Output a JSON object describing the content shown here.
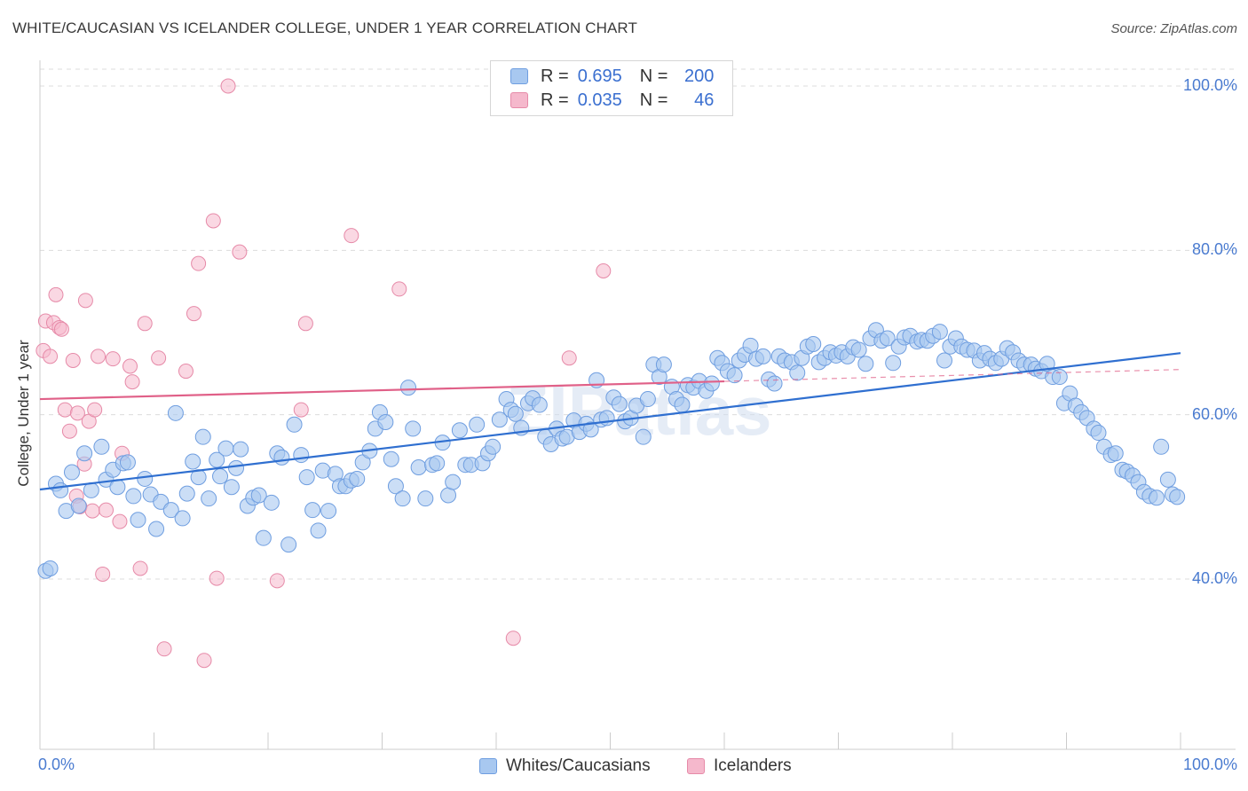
{
  "header": {
    "title": "WHITE/CAUCASIAN VS ICELANDER COLLEGE, UNDER 1 YEAR CORRELATION CHART",
    "source": "Source: ZipAtlas.com"
  },
  "colors": {
    "blue_fill": "#a8c8f0",
    "blue_stroke": "#6f9ee0",
    "blue_line": "#2f6fd0",
    "pink_fill": "#f5b8cc",
    "pink_stroke": "#e68aa8",
    "pink_line": "#e06088",
    "tick_text": "#4a7bd0",
    "grid": "#dcdcdc"
  },
  "legend": {
    "rows": [
      {
        "r_label": "R =",
        "r_value": "0.695",
        "n_label": "N =",
        "n_value": "200",
        "swatch": "blue"
      },
      {
        "r_label": "R =",
        "r_value": "0.035",
        "n_label": "N =",
        "n_value": "46",
        "swatch": "pink"
      }
    ]
  },
  "bottom_legend": {
    "items": [
      {
        "label": "Whites/Caucasians",
        "swatch": "blue"
      },
      {
        "label": "Icelanders",
        "swatch": "pink"
      }
    ]
  },
  "chart_data": {
    "type": "scatter",
    "title": "WHITE/CAUCASIAN VS ICELANDER COLLEGE, UNDER 1 YEAR CORRELATION CHART",
    "xlabel": "",
    "ylabel": "College, Under 1 year",
    "xlim": [
      0,
      100
    ],
    "ylim": [
      20,
      102
    ],
    "x_tick_labels": [
      "0.0%",
      "100.0%"
    ],
    "y_ticks": [
      40,
      60,
      80,
      100
    ],
    "y_tick_labels": [
      "40.0%",
      "60.0%",
      "80.0%",
      "100.0%"
    ],
    "grid": true,
    "watermark": "ZIPatlas",
    "series": [
      {
        "name": "Whites/Caucasians",
        "color": "#a8c8f0",
        "trend": {
          "x": [
            0,
            100
          ],
          "y": [
            50.9,
            67.5
          ]
        },
        "points": [
          [
            0.5,
            41.0
          ],
          [
            0.9,
            41.3
          ],
          [
            1.4,
            51.6
          ],
          [
            1.8,
            50.8
          ],
          [
            2.3,
            48.3
          ],
          [
            2.8,
            53.0
          ],
          [
            3.4,
            48.9
          ],
          [
            3.9,
            55.3
          ],
          [
            4.5,
            50.8
          ],
          [
            5.4,
            56.1
          ],
          [
            5.8,
            52.1
          ],
          [
            6.4,
            53.3
          ],
          [
            6.8,
            51.2
          ],
          [
            7.3,
            54.1
          ],
          [
            7.7,
            54.2
          ],
          [
            8.2,
            50.1
          ],
          [
            8.6,
            47.2
          ],
          [
            9.2,
            52.2
          ],
          [
            9.7,
            50.3
          ],
          [
            10.2,
            46.1
          ],
          [
            10.6,
            49.4
          ],
          [
            11.5,
            48.4
          ],
          [
            11.9,
            60.2
          ],
          [
            12.5,
            47.4
          ],
          [
            12.9,
            50.4
          ],
          [
            13.4,
            54.3
          ],
          [
            13.9,
            52.4
          ],
          [
            14.3,
            57.3
          ],
          [
            14.8,
            49.8
          ],
          [
            15.5,
            54.5
          ],
          [
            15.8,
            52.5
          ],
          [
            16.3,
            55.9
          ],
          [
            16.8,
            51.2
          ],
          [
            17.2,
            53.5
          ],
          [
            17.6,
            55.8
          ],
          [
            18.2,
            48.9
          ],
          [
            18.7,
            49.9
          ],
          [
            19.2,
            50.2
          ],
          [
            19.6,
            45.0
          ],
          [
            20.3,
            49.3
          ],
          [
            20.8,
            55.3
          ],
          [
            21.2,
            54.8
          ],
          [
            21.8,
            44.2
          ],
          [
            22.3,
            58.8
          ],
          [
            22.9,
            55.1
          ],
          [
            23.4,
            52.4
          ],
          [
            23.9,
            48.4
          ],
          [
            24.4,
            45.9
          ],
          [
            24.8,
            53.2
          ],
          [
            25.3,
            48.3
          ],
          [
            25.9,
            52.8
          ],
          [
            26.3,
            51.3
          ],
          [
            26.8,
            51.3
          ],
          [
            27.3,
            52.0
          ],
          [
            27.8,
            52.2
          ],
          [
            28.3,
            54.2
          ],
          [
            28.9,
            55.6
          ],
          [
            29.4,
            58.3
          ],
          [
            29.8,
            60.3
          ],
          [
            30.3,
            59.1
          ],
          [
            30.8,
            54.6
          ],
          [
            31.2,
            51.3
          ],
          [
            31.8,
            49.8
          ],
          [
            32.3,
            63.3
          ],
          [
            32.7,
            58.3
          ],
          [
            33.2,
            53.6
          ],
          [
            33.8,
            49.8
          ],
          [
            34.4,
            53.9
          ],
          [
            34.8,
            54.1
          ],
          [
            35.3,
            56.6
          ],
          [
            35.8,
            50.2
          ],
          [
            36.2,
            51.8
          ],
          [
            36.8,
            58.1
          ],
          [
            37.3,
            53.9
          ],
          [
            37.8,
            53.9
          ],
          [
            38.3,
            58.8
          ],
          [
            38.8,
            54.1
          ],
          [
            39.3,
            55.3
          ],
          [
            39.7,
            56.1
          ],
          [
            40.3,
            59.4
          ],
          [
            40.9,
            61.9
          ],
          [
            41.3,
            60.6
          ],
          [
            41.7,
            60.1
          ],
          [
            42.2,
            58.4
          ],
          [
            42.8,
            61.4
          ],
          [
            43.2,
            62.0
          ],
          [
            43.8,
            61.2
          ],
          [
            44.3,
            57.3
          ],
          [
            44.8,
            56.4
          ],
          [
            45.3,
            58.3
          ],
          [
            45.8,
            57.1
          ],
          [
            46.2,
            57.3
          ],
          [
            46.8,
            59.3
          ],
          [
            47.3,
            57.9
          ],
          [
            47.9,
            58.9
          ],
          [
            48.3,
            58.2
          ],
          [
            48.8,
            64.2
          ],
          [
            49.2,
            59.4
          ],
          [
            49.7,
            59.6
          ],
          [
            50.3,
            62.1
          ],
          [
            50.8,
            61.3
          ],
          [
            51.3,
            59.2
          ],
          [
            51.8,
            59.6
          ],
          [
            52.3,
            61.1
          ],
          [
            52.9,
            57.3
          ],
          [
            53.3,
            61.9
          ],
          [
            53.8,
            66.1
          ],
          [
            54.3,
            64.6
          ],
          [
            54.7,
            66.1
          ],
          [
            55.4,
            63.4
          ],
          [
            55.8,
            61.9
          ],
          [
            56.3,
            61.2
          ],
          [
            56.8,
            63.6
          ],
          [
            57.3,
            63.3
          ],
          [
            57.8,
            64.1
          ],
          [
            58.4,
            62.9
          ],
          [
            58.9,
            63.8
          ],
          [
            59.4,
            66.9
          ],
          [
            59.8,
            66.3
          ],
          [
            60.3,
            65.3
          ],
          [
            60.9,
            64.8
          ],
          [
            61.3,
            66.6
          ],
          [
            61.8,
            67.3
          ],
          [
            62.3,
            68.4
          ],
          [
            62.8,
            66.8
          ],
          [
            63.4,
            67.1
          ],
          [
            63.9,
            64.3
          ],
          [
            64.4,
            63.8
          ],
          [
            64.8,
            67.1
          ],
          [
            65.3,
            66.6
          ],
          [
            65.9,
            66.4
          ],
          [
            66.4,
            65.1
          ],
          [
            66.8,
            66.9
          ],
          [
            67.3,
            68.3
          ],
          [
            67.8,
            68.6
          ],
          [
            68.3,
            66.4
          ],
          [
            68.8,
            66.9
          ],
          [
            69.3,
            67.6
          ],
          [
            69.8,
            67.2
          ],
          [
            70.3,
            67.6
          ],
          [
            70.8,
            67.1
          ],
          [
            71.3,
            68.2
          ],
          [
            71.8,
            67.9
          ],
          [
            72.4,
            66.2
          ],
          [
            72.8,
            69.3
          ],
          [
            73.3,
            70.3
          ],
          [
            73.8,
            69.0
          ],
          [
            74.3,
            69.3
          ],
          [
            74.8,
            66.3
          ],
          [
            75.3,
            68.3
          ],
          [
            75.8,
            69.4
          ],
          [
            76.3,
            69.6
          ],
          [
            76.9,
            68.9
          ],
          [
            77.3,
            69.1
          ],
          [
            77.8,
            69.0
          ],
          [
            78.3,
            69.6
          ],
          [
            78.9,
            70.1
          ],
          [
            79.3,
            66.6
          ],
          [
            79.8,
            68.3
          ],
          [
            80.3,
            69.3
          ],
          [
            80.8,
            68.3
          ],
          [
            81.3,
            67.9
          ],
          [
            81.9,
            67.8
          ],
          [
            82.4,
            66.6
          ],
          [
            82.8,
            67.5
          ],
          [
            83.3,
            66.8
          ],
          [
            83.8,
            66.3
          ],
          [
            84.3,
            66.8
          ],
          [
            84.8,
            68.1
          ],
          [
            85.3,
            67.6
          ],
          [
            85.8,
            66.6
          ],
          [
            86.3,
            66.1
          ],
          [
            86.9,
            66.1
          ],
          [
            87.3,
            65.6
          ],
          [
            87.8,
            65.3
          ],
          [
            88.3,
            66.2
          ],
          [
            88.8,
            64.6
          ],
          [
            89.4,
            64.6
          ],
          [
            89.8,
            61.4
          ],
          [
            90.3,
            62.6
          ],
          [
            90.8,
            61.1
          ],
          [
            91.3,
            60.3
          ],
          [
            91.8,
            59.6
          ],
          [
            92.4,
            58.3
          ],
          [
            92.8,
            57.8
          ],
          [
            93.3,
            56.1
          ],
          [
            93.9,
            55.1
          ],
          [
            94.3,
            55.3
          ],
          [
            94.9,
            53.3
          ],
          [
            95.3,
            53.1
          ],
          [
            95.8,
            52.6
          ],
          [
            96.3,
            51.8
          ],
          [
            96.8,
            50.6
          ],
          [
            97.3,
            50.1
          ],
          [
            97.9,
            49.9
          ],
          [
            98.3,
            56.1
          ],
          [
            98.9,
            52.1
          ],
          [
            99.3,
            50.3
          ],
          [
            99.7,
            50.0
          ]
        ]
      },
      {
        "name": "Icelanders",
        "color": "#f5b8cc",
        "trend": {
          "x": [
            0,
            100
          ],
          "y": [
            61.9,
            65.5
          ]
        },
        "points": [
          [
            0.3,
            67.8
          ],
          [
            0.5,
            71.4
          ],
          [
            0.9,
            67.1
          ],
          [
            1.2,
            71.2
          ],
          [
            1.4,
            74.6
          ],
          [
            1.7,
            70.6
          ],
          [
            1.9,
            70.4
          ],
          [
            2.2,
            60.6
          ],
          [
            2.6,
            58.0
          ],
          [
            2.9,
            66.6
          ],
          [
            3.2,
            50.1
          ],
          [
            3.3,
            60.2
          ],
          [
            3.5,
            48.8
          ],
          [
            3.9,
            54.0
          ],
          [
            4.0,
            73.9
          ],
          [
            4.3,
            59.2
          ],
          [
            4.6,
            48.3
          ],
          [
            4.8,
            60.6
          ],
          [
            5.1,
            67.1
          ],
          [
            5.5,
            40.6
          ],
          [
            5.8,
            48.4
          ],
          [
            6.4,
            66.8
          ],
          [
            7.0,
            47.0
          ],
          [
            7.2,
            55.3
          ],
          [
            7.9,
            65.9
          ],
          [
            8.1,
            64.0
          ],
          [
            8.8,
            41.3
          ],
          [
            9.2,
            71.1
          ],
          [
            10.4,
            66.9
          ],
          [
            10.9,
            31.5
          ],
          [
            12.8,
            65.3
          ],
          [
            13.5,
            72.3
          ],
          [
            13.9,
            78.4
          ],
          [
            14.4,
            30.1
          ],
          [
            15.2,
            83.6
          ],
          [
            15.5,
            40.1
          ],
          [
            16.5,
            100.0
          ],
          [
            17.5,
            79.8
          ],
          [
            20.8,
            39.8
          ],
          [
            22.9,
            60.6
          ],
          [
            23.3,
            71.1
          ],
          [
            27.3,
            81.8
          ],
          [
            31.5,
            75.3
          ],
          [
            41.5,
            32.8
          ],
          [
            46.4,
            66.9
          ],
          [
            49.4,
            77.5
          ]
        ]
      }
    ]
  }
}
